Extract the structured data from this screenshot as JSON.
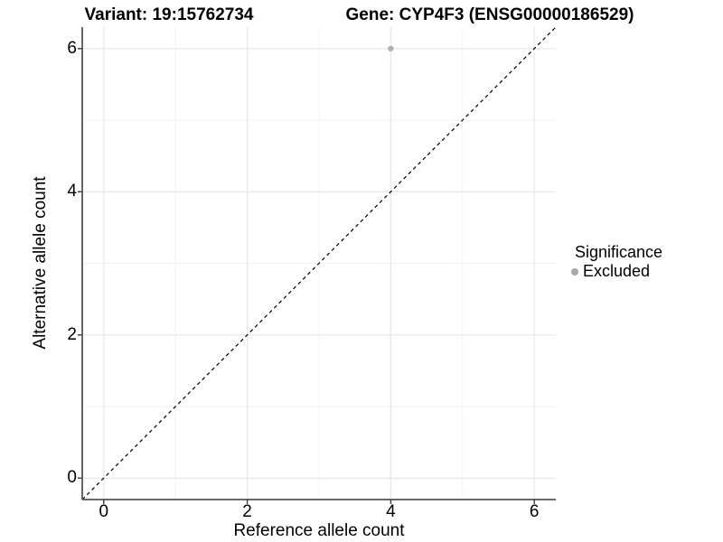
{
  "figure": {
    "title_left": "Variant: 19:15762734",
    "title_right": "Gene: CYP4F3 (ENSG00000186529)"
  },
  "axes": {
    "x_label": "Reference allele count",
    "y_label": "Alternative allele count",
    "x_tick_labels": [
      "0",
      "2",
      "4",
      "6"
    ],
    "y_tick_labels": [
      "0",
      "2",
      "4",
      "6"
    ]
  },
  "legend": {
    "title": "Significance",
    "items": [
      {
        "label": "Excluded",
        "color": "#a9a9a9"
      }
    ]
  },
  "colors": {
    "point": "#b0b0b0",
    "grid_major": "#e8e8e8",
    "grid_minor": "#f3f3f3",
    "axis_line": "#555555",
    "tick_mark": "#3d3d3d",
    "identity_line": "#000000",
    "text": "#000000"
  },
  "chart_data": {
    "type": "scatter",
    "title": "Variant: 19:15762734  |  Gene: CYP4F3 (ENSG00000186529)",
    "xlabel": "Reference allele count",
    "ylabel": "Alternative allele count",
    "xlim": [
      -0.3,
      6.3
    ],
    "ylim": [
      -0.3,
      6.3
    ],
    "x_ticks": [
      0,
      2,
      4,
      6
    ],
    "y_ticks": [
      0,
      2,
      4,
      6
    ],
    "x_minor_ticks": [
      1,
      3,
      5
    ],
    "y_minor_ticks": [
      1,
      3,
      5
    ],
    "grid": "major+minor",
    "legend_position": "right",
    "legend_title": "Significance",
    "series": [
      {
        "name": "Excluded",
        "color": "#b0b0b0",
        "points": [
          {
            "x": 4,
            "y": 6
          }
        ]
      }
    ],
    "reference_line": {
      "type": "identity",
      "equation": "y = x",
      "style": "dashed"
    }
  }
}
